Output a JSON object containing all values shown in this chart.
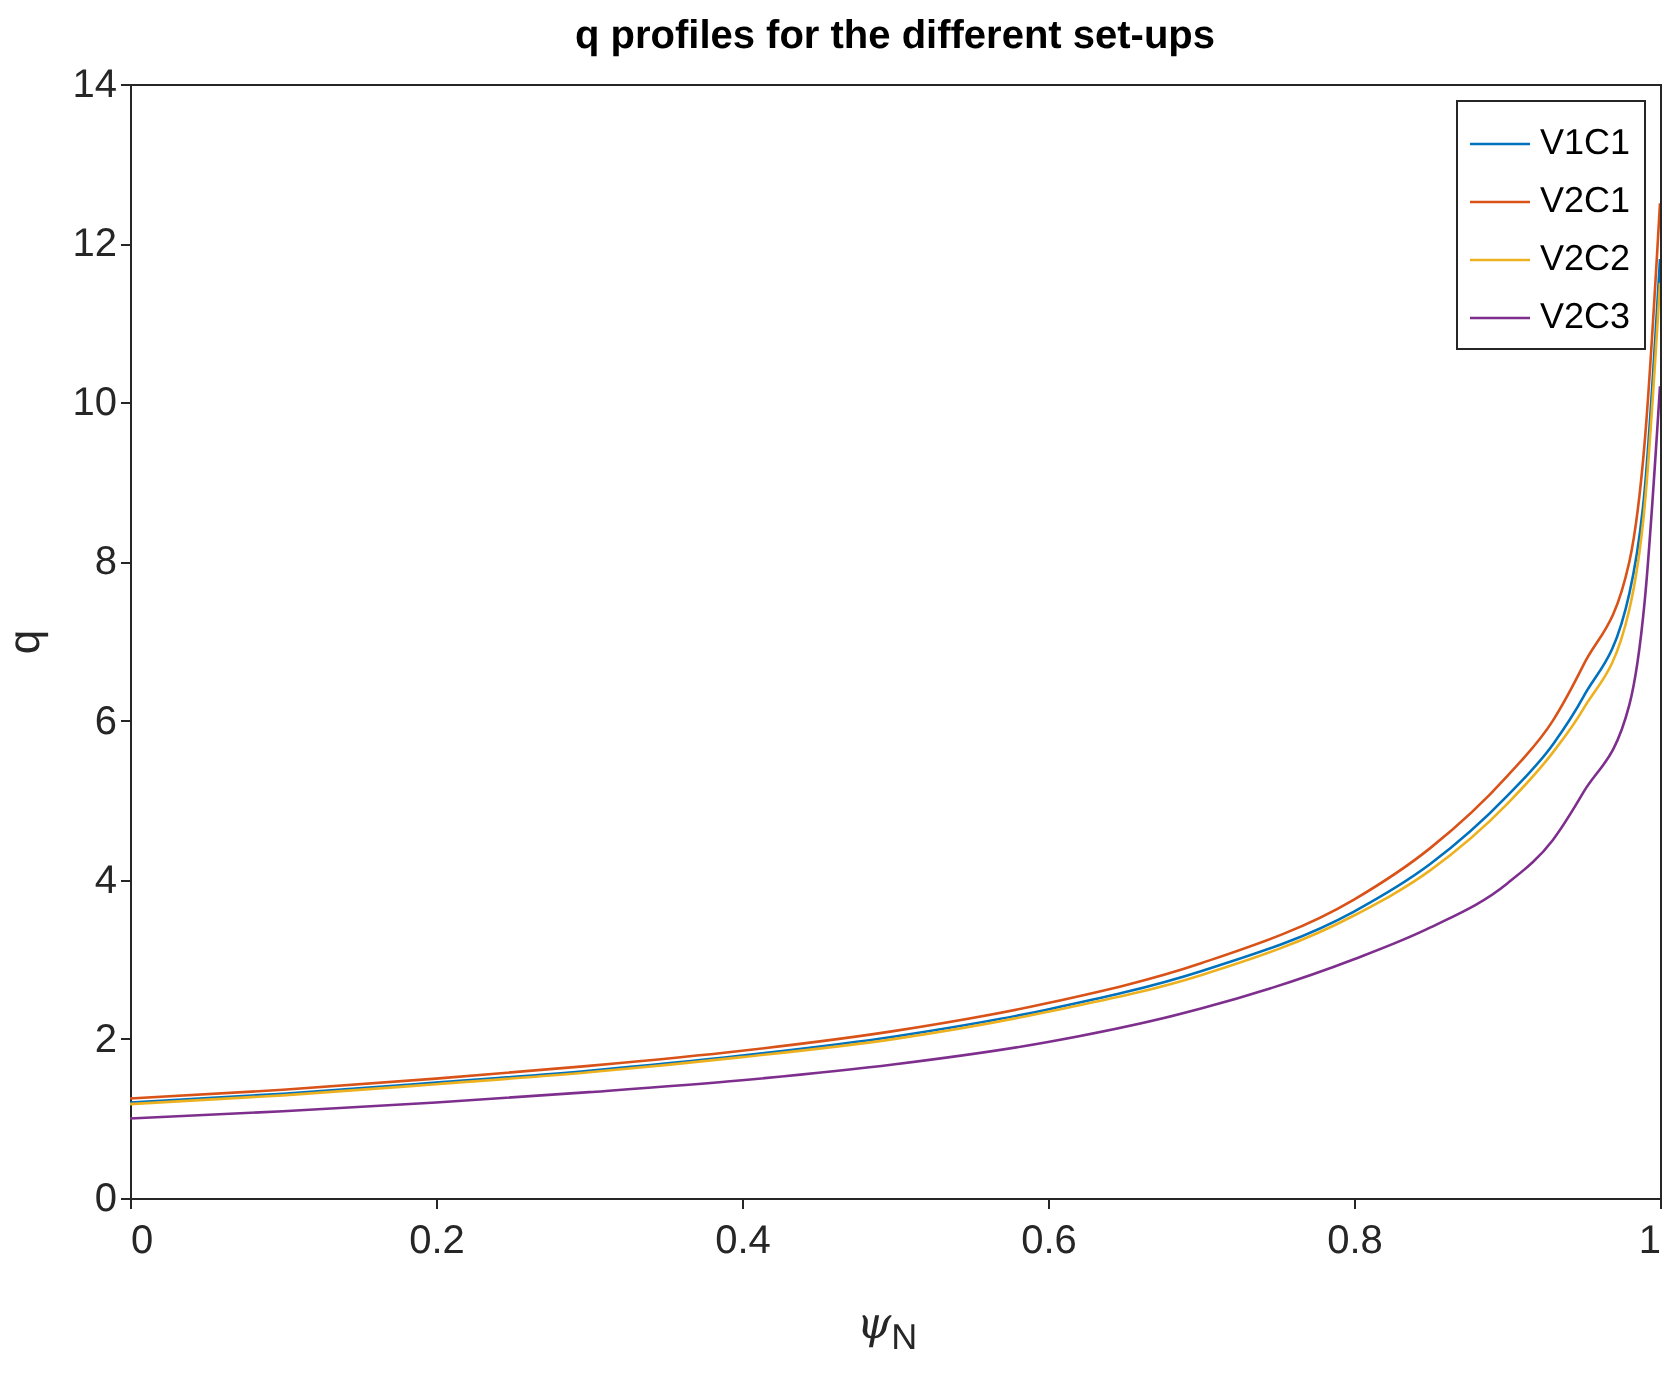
{
  "chart_data": {
    "type": "line",
    "title": "q profiles for the different set-ups",
    "xlabel": "ψ$_{N}$",
    "ylabel": "q",
    "x": [
      0,
      0.1,
      0.2,
      0.3,
      0.4,
      0.5,
      0.6,
      0.7,
      0.8,
      0.85,
      0.9,
      0.93,
      0.95,
      0.98,
      0.99,
      1
    ],
    "series": [
      {
        "name": "V1C1",
        "color": "#0072bd",
        "values": [
          1.2,
          1.31,
          1.45,
          1.6,
          1.79,
          2.03,
          2.37,
          2.85,
          3.6,
          4.2,
          5.05,
          5.7,
          6.3,
          7.6,
          8.9,
          11.8
        ]
      },
      {
        "name": "V2C1",
        "color": "#d95319",
        "values": [
          1.25,
          1.36,
          1.5,
          1.66,
          1.85,
          2.1,
          2.45,
          2.95,
          3.75,
          4.4,
          5.3,
          6.0,
          6.7,
          8.0,
          9.5,
          12.5
        ]
      },
      {
        "name": "V2C2",
        "color": "#edb120",
        "values": [
          1.18,
          1.29,
          1.43,
          1.58,
          1.77,
          2.0,
          2.34,
          2.8,
          3.55,
          4.12,
          4.95,
          5.6,
          6.15,
          7.4,
          8.7,
          11.5
        ]
      },
      {
        "name": "V2C3",
        "color": "#7e2f8e",
        "values": [
          1.0,
          1.09,
          1.2,
          1.33,
          1.48,
          1.68,
          1.96,
          2.38,
          3.0,
          3.4,
          3.95,
          4.5,
          5.1,
          6.2,
          7.5,
          10.2
        ]
      }
    ],
    "xlim": [
      0,
      1
    ],
    "xticks": [
      0,
      0.2,
      0.4,
      0.6,
      0.8,
      1
    ],
    "ylim": [
      0,
      14
    ],
    "yticks": [
      0,
      2,
      4,
      6,
      8,
      10,
      12,
      14
    ],
    "grid": false,
    "legend": "top right",
    "line_style": "solid",
    "marker": "none"
  }
}
